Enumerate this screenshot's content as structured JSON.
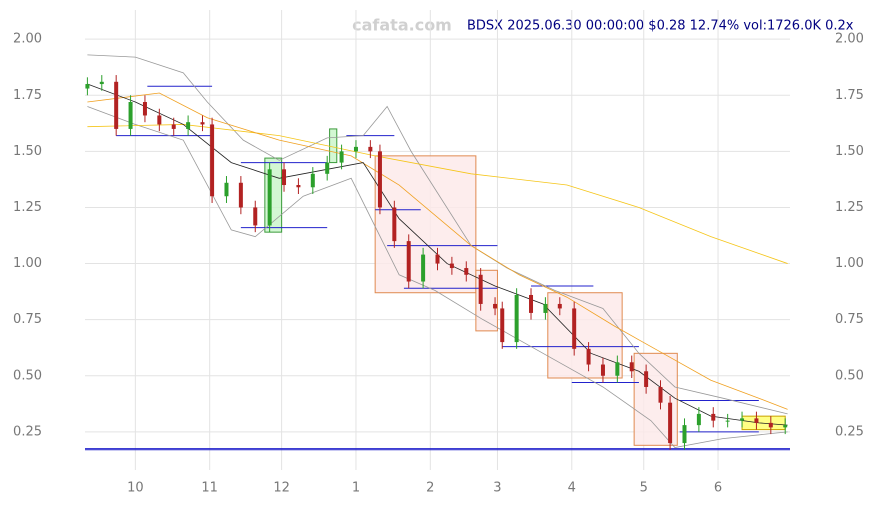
{
  "chart_data": {
    "type": "candlestick",
    "title": "BDSX 2025.06.30 00:00:00 $0.28 12.74% vol:1726.0K 0.2x",
    "watermark": "cafata.com",
    "xlim": [
      -21,
      273
    ],
    "ylim": [
      0.08,
      2.13
    ],
    "xticks": [
      {
        "value": 0,
        "label": "10"
      },
      {
        "value": 31,
        "label": "11"
      },
      {
        "value": 61,
        "label": "12"
      },
      {
        "value": 92,
        "label": "1"
      },
      {
        "value": 123,
        "label": "2"
      },
      {
        "value": 151,
        "label": "3"
      },
      {
        "value": 182,
        "label": "4"
      },
      {
        "value": 212,
        "label": "5"
      },
      {
        "value": 243,
        "label": "6"
      }
    ],
    "yticks": [
      {
        "value": 2.0,
        "label": "2.00"
      },
      {
        "value": 1.75,
        "label": "1.75"
      },
      {
        "value": 1.5,
        "label": "1.50"
      },
      {
        "value": 1.25,
        "label": "1.25"
      },
      {
        "value": 1.0,
        "label": "1.00"
      },
      {
        "value": 0.75,
        "label": "0.75"
      },
      {
        "value": 0.5,
        "label": "0.50"
      },
      {
        "value": 0.25,
        "label": "0.25"
      }
    ],
    "grid": true,
    "up_color": "#2ca02c",
    "down_color": "#b22222",
    "x": [
      -20,
      -14,
      -8,
      -2,
      4,
      10,
      16,
      22,
      28,
      32,
      38,
      44,
      50,
      56,
      62,
      68,
      74,
      80,
      86,
      92,
      98,
      102,
      108,
      114,
      120,
      126,
      132,
      138,
      144,
      150,
      153,
      159,
      165,
      171,
      177,
      183,
      189,
      195,
      201,
      207,
      213,
      219,
      223,
      229,
      235,
      241,
      247,
      253,
      259,
      265,
      271
    ],
    "open": [
      1.78,
      1.8,
      1.81,
      1.6,
      1.72,
      1.66,
      1.62,
      1.6,
      1.63,
      1.62,
      1.3,
      1.36,
      1.25,
      1.17,
      1.42,
      1.35,
      1.34,
      1.4,
      1.45,
      1.5,
      1.52,
      1.5,
      1.25,
      1.1,
      0.92,
      1.04,
      1.0,
      0.98,
      0.95,
      0.82,
      0.8,
      0.65,
      0.86,
      0.78,
      0.82,
      0.8,
      0.62,
      0.55,
      0.5,
      0.56,
      0.52,
      0.45,
      0.38,
      0.2,
      0.28,
      0.33,
      0.3,
      0.3,
      0.31,
      0.29,
      0.27
    ],
    "high": [
      1.83,
      1.84,
      1.84,
      1.75,
      1.75,
      1.69,
      1.65,
      1.66,
      1.66,
      1.65,
      1.39,
      1.39,
      1.28,
      1.45,
      1.45,
      1.38,
      1.43,
      1.48,
      1.53,
      1.55,
      1.55,
      1.53,
      1.28,
      1.13,
      1.07,
      1.07,
      1.03,
      1.01,
      0.98,
      0.85,
      0.83,
      0.89,
      0.89,
      0.85,
      0.85,
      0.83,
      0.65,
      0.58,
      0.59,
      0.59,
      0.55,
      0.48,
      0.41,
      0.31,
      0.36,
      0.36,
      0.33,
      0.34,
      0.34,
      0.32,
      0.31
    ],
    "low": [
      1.75,
      1.77,
      1.57,
      1.57,
      1.63,
      1.59,
      1.57,
      1.57,
      1.59,
      1.27,
      1.27,
      1.22,
      1.14,
      1.14,
      1.32,
      1.31,
      1.31,
      1.37,
      1.42,
      1.47,
      1.47,
      1.22,
      1.07,
      0.89,
      0.89,
      0.97,
      0.95,
      0.92,
      0.79,
      0.77,
      0.62,
      0.62,
      0.75,
      0.75,
      0.77,
      0.59,
      0.52,
      0.47,
      0.47,
      0.49,
      0.42,
      0.35,
      0.17,
      0.17,
      0.25,
      0.27,
      0.27,
      0.27,
      0.26,
      0.24,
      0.24
    ],
    "close": [
      1.8,
      1.81,
      1.6,
      1.72,
      1.66,
      1.62,
      1.6,
      1.63,
      1.62,
      1.3,
      1.36,
      1.25,
      1.17,
      1.42,
      1.35,
      1.34,
      1.4,
      1.45,
      1.5,
      1.52,
      1.5,
      1.25,
      1.1,
      0.92,
      1.04,
      1.0,
      0.98,
      0.95,
      0.82,
      0.8,
      0.65,
      0.86,
      0.78,
      0.82,
      0.8,
      0.62,
      0.55,
      0.5,
      0.56,
      0.52,
      0.45,
      0.38,
      0.2,
      0.28,
      0.33,
      0.3,
      0.3,
      0.31,
      0.29,
      0.27,
      0.28
    ],
    "lines": [
      {
        "color": "#999999",
        "x": [
          -20,
          0,
          20,
          30,
          45,
          60,
          80,
          95,
          105,
          115,
          140,
          155,
          175,
          195,
          210,
          225,
          245,
          272
        ],
        "values": [
          1.93,
          1.92,
          1.85,
          1.72,
          1.55,
          1.46,
          1.56,
          1.57,
          1.7,
          1.5,
          1.08,
          0.98,
          0.88,
          0.8,
          0.6,
          0.45,
          0.4,
          0.33
        ]
      },
      {
        "color": "#999999",
        "x": [
          -20,
          0,
          20,
          40,
          50,
          70,
          90,
          110,
          125,
          145,
          170,
          195,
          215,
          225,
          245,
          272
        ],
        "values": [
          1.7,
          1.62,
          1.55,
          1.15,
          1.12,
          1.3,
          1.38,
          0.95,
          0.88,
          0.75,
          0.6,
          0.45,
          0.3,
          0.18,
          0.22,
          0.25
        ]
      },
      {
        "color": "#f5c518",
        "x": [
          -20,
          20,
          60,
          100,
          140,
          180,
          210,
          240,
          272
        ],
        "values": [
          1.61,
          1.62,
          1.57,
          1.48,
          1.4,
          1.35,
          1.25,
          1.12,
          1.0
        ]
      },
      {
        "color": "#f0a020",
        "x": [
          -20,
          10,
          30,
          60,
          90,
          110,
          140,
          160,
          180,
          200,
          220,
          240,
          260,
          272
        ],
        "values": [
          1.72,
          1.76,
          1.65,
          1.55,
          1.48,
          1.35,
          1.08,
          0.95,
          0.85,
          0.72,
          0.6,
          0.48,
          0.4,
          0.35
        ]
      },
      {
        "color": "#222222",
        "x": [
          -20,
          0,
          20,
          40,
          60,
          80,
          95,
          110,
          130,
          150,
          170,
          190,
          210,
          225,
          240,
          260,
          272
        ],
        "values": [
          1.8,
          1.72,
          1.62,
          1.45,
          1.38,
          1.42,
          1.45,
          1.2,
          1.0,
          0.9,
          0.82,
          0.6,
          0.52,
          0.4,
          0.32,
          0.29,
          0.28
        ]
      }
    ],
    "boxes": [
      {
        "color": "#e08a50",
        "fill": "#fde8e8",
        "x0": 100,
        "x1": 142,
        "y0": 0.87,
        "y1": 1.48
      },
      {
        "color": "#e08a50",
        "fill": "#fde8e8",
        "x0": 142,
        "x1": 151,
        "y0": 0.7,
        "y1": 0.97
      },
      {
        "color": "#e08a50",
        "fill": "#fde8e8",
        "x0": 172,
        "x1": 203,
        "y0": 0.49,
        "y1": 0.87
      },
      {
        "color": "#e08a50",
        "fill": "#fde8e8",
        "x0": 208,
        "x1": 226,
        "y0": 0.19,
        "y1": 0.6
      },
      {
        "color": "#3a9a3a",
        "fill": "#c8f5c8",
        "x0": 54,
        "x1": 61,
        "y0": 1.14,
        "y1": 1.47
      },
      {
        "color": "#3a9a3a",
        "fill": "#c8f5c8",
        "x0": 81,
        "x1": 84,
        "y0": 1.45,
        "y1": 1.6
      },
      {
        "color": "#c8a000",
        "fill": "#ffff66",
        "x0": 253,
        "x1": 271,
        "y0": 0.26,
        "y1": 0.32
      }
    ],
    "levels": [
      {
        "color": "#2222cc",
        "x0": -21,
        "x1": 273,
        "y": 0.17
      },
      {
        "color": "#2222cc",
        "x0": -21,
        "x1": 273,
        "y": 0.175
      },
      {
        "color": "#2222cc",
        "x0": -8,
        "x1": 32,
        "y": 1.57
      },
      {
        "color": "#2222cc",
        "x0": 5,
        "x1": 32,
        "y": 1.79
      },
      {
        "color": "#2222cc",
        "x0": 44,
        "x1": 80,
        "y": 1.16
      },
      {
        "color": "#2222cc",
        "x0": 44,
        "x1": 80,
        "y": 1.45
      },
      {
        "color": "#2222cc",
        "x0": 88,
        "x1": 108,
        "y": 1.57
      },
      {
        "color": "#2222cc",
        "x0": 100,
        "x1": 119,
        "y": 1.24
      },
      {
        "color": "#2222cc",
        "x0": 105,
        "x1": 151,
        "y": 1.08
      },
      {
        "color": "#2222cc",
        "x0": 112,
        "x1": 151,
        "y": 0.89
      },
      {
        "color": "#2222cc",
        "x0": 165,
        "x1": 191,
        "y": 0.9
      },
      {
        "color": "#2222cc",
        "x0": 153,
        "x1": 210,
        "y": 0.63
      },
      {
        "color": "#2222cc",
        "x0": 182,
        "x1": 210,
        "y": 0.47
      },
      {
        "color": "#2222cc",
        "x0": 227,
        "x1": 260,
        "y": 0.39
      },
      {
        "color": "#2222cc",
        "x0": 227,
        "x1": 260,
        "y": 0.25
      }
    ]
  }
}
